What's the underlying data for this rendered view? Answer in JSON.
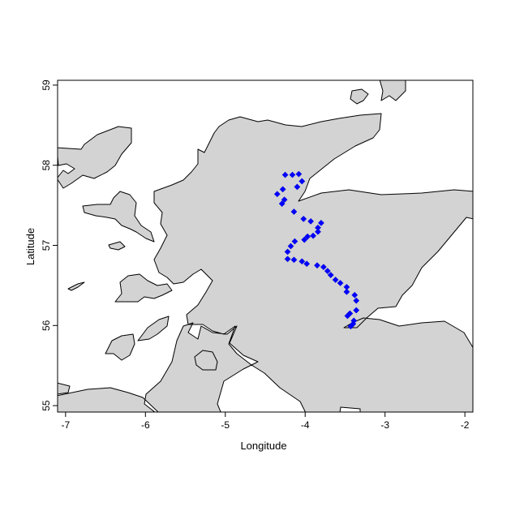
{
  "chart_data": {
    "type": "scatter",
    "title": "",
    "xlabel": "Longitude",
    "ylabel": "Latitude",
    "xlim": [
      -7.1,
      -1.9
    ],
    "ylim": [
      54.92,
      59.06
    ],
    "x_ticks": [
      "-7",
      "-6",
      "-5",
      "-4",
      "-3",
      "-2"
    ],
    "y_ticks": [
      "55",
      "56",
      "57",
      "58",
      "59"
    ],
    "grid": false,
    "legend": "none",
    "colors": {
      "land": "#d3d3d3",
      "points": "#0000ff",
      "background": "#ffffff"
    },
    "series": [
      {
        "marker": "diamond",
        "points": [
          {
            "x": -4.25,
            "y": 57.88
          },
          {
            "x": -4.16,
            "y": 57.88
          },
          {
            "x": -4.08,
            "y": 57.89
          },
          {
            "x": -4.04,
            "y": 57.8
          },
          {
            "x": -4.1,
            "y": 57.73
          },
          {
            "x": -4.28,
            "y": 57.7
          },
          {
            "x": -4.35,
            "y": 57.64
          },
          {
            "x": -4.26,
            "y": 57.57
          },
          {
            "x": -4.29,
            "y": 57.52
          },
          {
            "x": -4.14,
            "y": 57.42
          },
          {
            "x": -4.02,
            "y": 57.33
          },
          {
            "x": -3.93,
            "y": 57.3
          },
          {
            "x": -3.8,
            "y": 57.28
          },
          {
            "x": -3.84,
            "y": 57.22
          },
          {
            "x": -3.84,
            "y": 57.17
          },
          {
            "x": -3.9,
            "y": 57.12
          },
          {
            "x": -3.97,
            "y": 57.11
          },
          {
            "x": -4.01,
            "y": 57.07
          },
          {
            "x": -4.13,
            "y": 57.05
          },
          {
            "x": -4.18,
            "y": 56.99
          },
          {
            "x": -4.22,
            "y": 56.92
          },
          {
            "x": -4.22,
            "y": 56.83
          },
          {
            "x": -4.14,
            "y": 56.82
          },
          {
            "x": -4.04,
            "y": 56.8
          },
          {
            "x": -3.98,
            "y": 56.77
          },
          {
            "x": -3.85,
            "y": 56.75
          },
          {
            "x": -3.77,
            "y": 56.73
          },
          {
            "x": -3.72,
            "y": 56.68
          },
          {
            "x": -3.68,
            "y": 56.63
          },
          {
            "x": -3.62,
            "y": 56.57
          },
          {
            "x": -3.56,
            "y": 56.53
          },
          {
            "x": -3.48,
            "y": 56.48
          },
          {
            "x": -3.48,
            "y": 56.42
          },
          {
            "x": -3.38,
            "y": 56.38
          },
          {
            "x": -3.36,
            "y": 56.31
          },
          {
            "x": -3.36,
            "y": 56.19
          },
          {
            "x": -3.44,
            "y": 56.15
          },
          {
            "x": -3.47,
            "y": 56.12
          },
          {
            "x": -3.39,
            "y": 56.06
          },
          {
            "x": -3.4,
            "y": 56.02
          },
          {
            "x": -3.43,
            "y": 55.99
          }
        ]
      }
    ]
  }
}
